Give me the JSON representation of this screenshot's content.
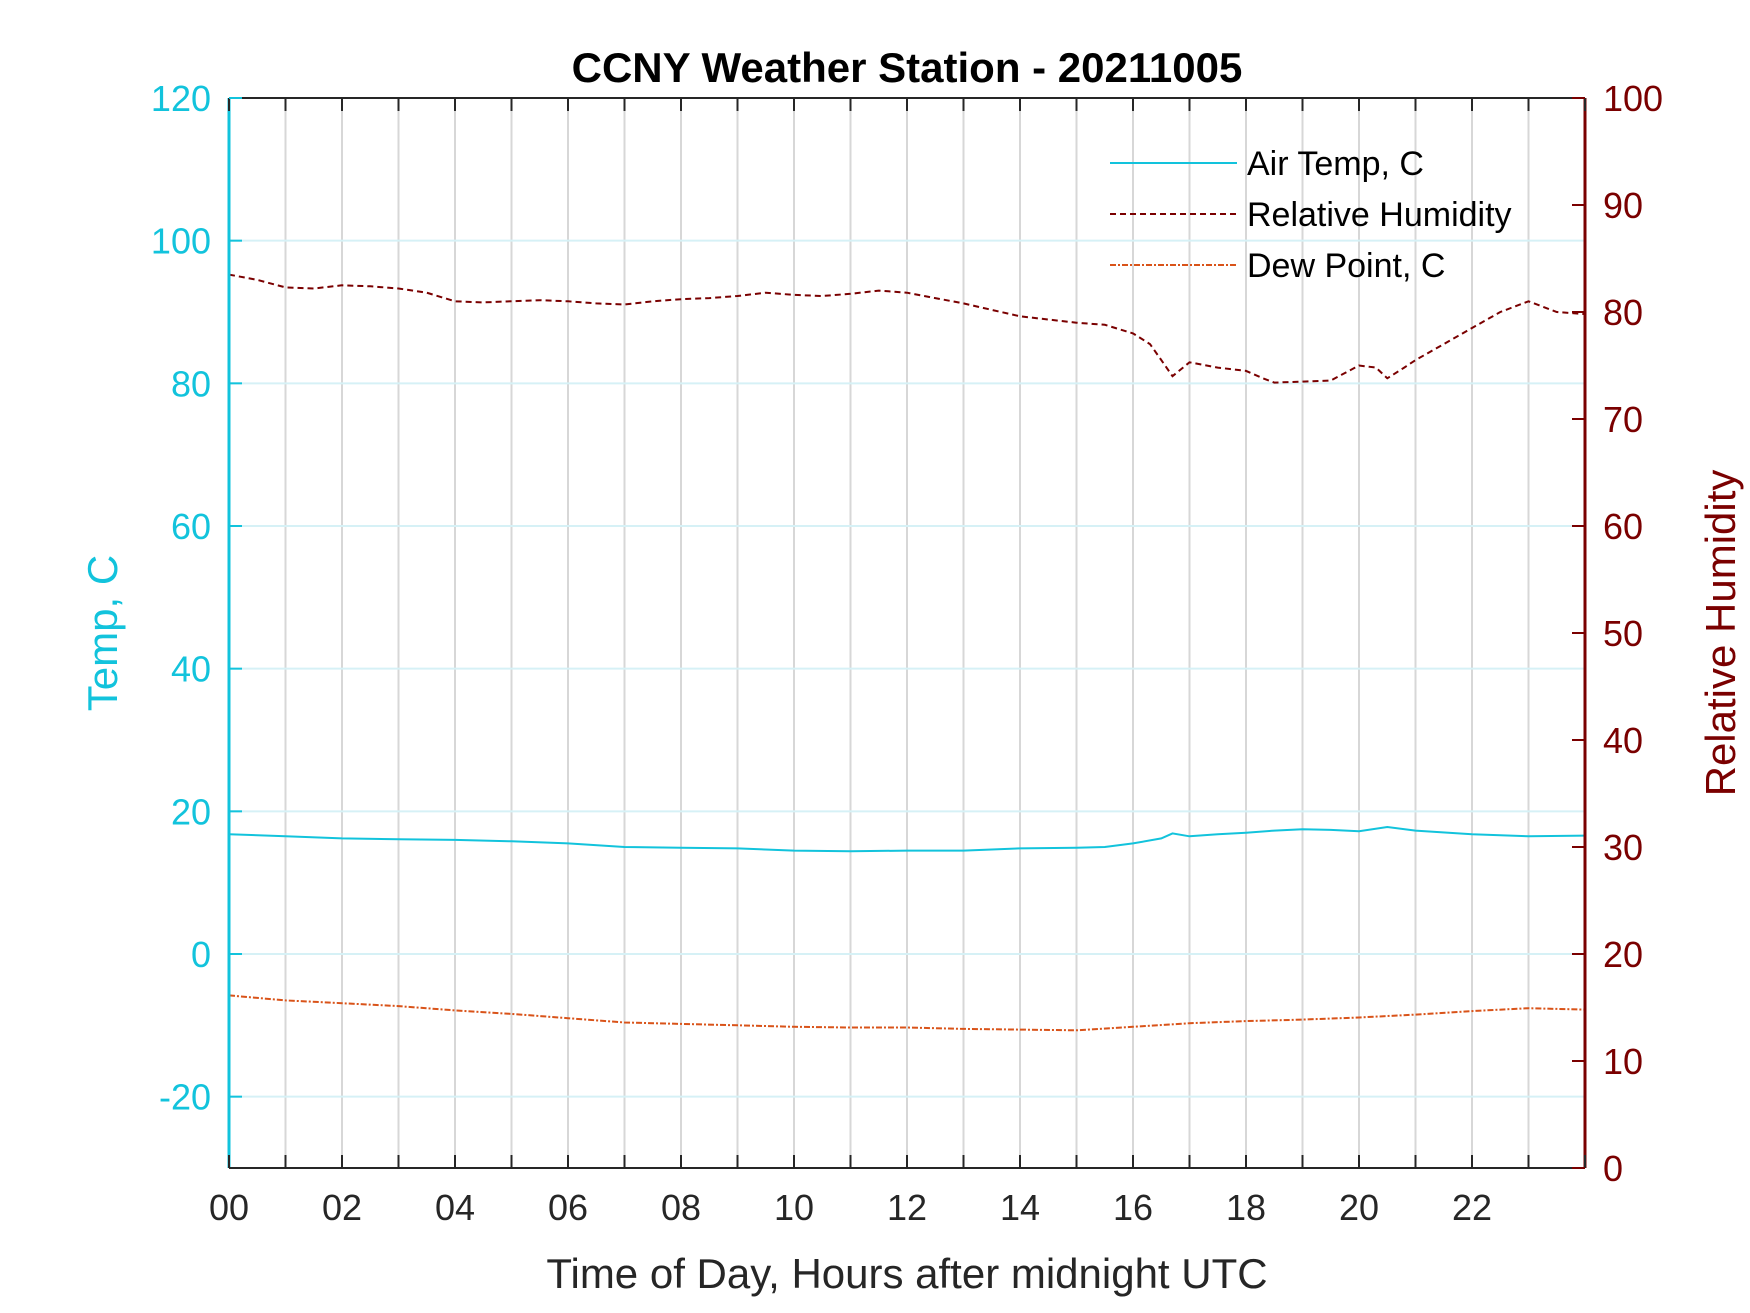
{
  "chart_data": {
    "type": "line",
    "title": "CCNY Weather Station - 20211005",
    "xlabel": "Time of Day, Hours after midnight UTC",
    "ylabel_left": "Temp, C",
    "ylabel_right": "Relative Humidity",
    "xlim": [
      0,
      24
    ],
    "ylim_left": [
      -30,
      120
    ],
    "ylim_right": [
      0,
      100
    ],
    "x_ticks": [
      0,
      2,
      4,
      6,
      8,
      10,
      12,
      14,
      16,
      18,
      20,
      22
    ],
    "x_tick_labels": [
      "00",
      "02",
      "04",
      "06",
      "08",
      "10",
      "12",
      "14",
      "16",
      "18",
      "20",
      "22"
    ],
    "y_left_ticks": [
      -20,
      0,
      20,
      40,
      60,
      80,
      100,
      120
    ],
    "y_left_tick_labels": [
      "-20",
      "0",
      "20",
      "40",
      "60",
      "80",
      "100",
      "120"
    ],
    "y_right_ticks": [
      0,
      10,
      20,
      30,
      40,
      50,
      60,
      70,
      80,
      90,
      100
    ],
    "y_right_tick_labels": [
      "0",
      "10",
      "20",
      "30",
      "40",
      "50",
      "60",
      "70",
      "80",
      "90",
      "100"
    ],
    "grid": true,
    "legend_position": "top-right",
    "colors": {
      "temp_axis": "#12c3dc",
      "humidity_axis": "#7a0000",
      "dew": "#d95319"
    },
    "series": [
      {
        "name": "Air Temp, C",
        "axis": "left",
        "style": "solid",
        "x": [
          0,
          1,
          2,
          3,
          4,
          5,
          6,
          7,
          8,
          9,
          10,
          11,
          12,
          13,
          14,
          15,
          15.5,
          16,
          16.5,
          16.7,
          17,
          17.5,
          18,
          18.5,
          19,
          19.5,
          20,
          20.5,
          21,
          22,
          23,
          24
        ],
        "y": [
          16.8,
          16.5,
          16.2,
          16.1,
          16.0,
          15.8,
          15.5,
          15.0,
          14.9,
          14.8,
          14.5,
          14.4,
          14.5,
          14.5,
          14.8,
          14.9,
          15.0,
          15.5,
          16.2,
          16.9,
          16.5,
          16.8,
          17.0,
          17.3,
          17.5,
          17.4,
          17.2,
          17.8,
          17.3,
          16.8,
          16.5,
          16.6
        ]
      },
      {
        "name": "Relative Humidity",
        "axis": "right",
        "style": "dashed",
        "x": [
          0,
          0.5,
          1,
          1.5,
          2,
          2.5,
          3,
          3.5,
          4,
          4.5,
          5,
          5.5,
          6,
          6.5,
          7,
          7.5,
          8,
          8.5,
          9,
          9.5,
          10,
          10.5,
          11,
          11.5,
          12,
          12.5,
          13,
          13.5,
          14,
          14.5,
          15,
          15.5,
          16,
          16.3,
          16.5,
          16.7,
          17,
          17.5,
          18,
          18.3,
          18.5,
          19,
          19.5,
          20,
          20.3,
          20.5,
          20.8,
          21,
          21.5,
          22,
          22.5,
          23,
          23.5,
          24
        ],
        "y": [
          83.5,
          83.0,
          82.3,
          82.2,
          82.5,
          82.4,
          82.2,
          81.8,
          81.0,
          80.9,
          81.0,
          81.1,
          81.0,
          80.8,
          80.7,
          81.0,
          81.2,
          81.3,
          81.5,
          81.8,
          81.6,
          81.5,
          81.7,
          82.0,
          81.8,
          81.3,
          80.8,
          80.2,
          79.6,
          79.3,
          79.0,
          78.8,
          78.0,
          77.0,
          75.5,
          74.0,
          75.3,
          74.8,
          74.5,
          73.8,
          73.4,
          73.5,
          73.6,
          75.0,
          74.8,
          73.8,
          74.8,
          75.5,
          77.0,
          78.5,
          80.0,
          81.0,
          80.0,
          79.8
        ]
      },
      {
        "name": "Dew Point, C",
        "axis": "left",
        "style": "dashdot",
        "x": [
          0,
          1,
          2,
          3,
          4,
          5,
          6,
          7,
          8,
          9,
          10,
          11,
          12,
          13,
          14,
          15,
          16,
          17,
          18,
          19,
          20,
          21,
          22,
          23,
          24
        ],
        "y": [
          -5.8,
          -6.5,
          -6.9,
          -7.3,
          -7.9,
          -8.4,
          -9.0,
          -9.6,
          -9.8,
          -10.0,
          -10.2,
          -10.3,
          -10.3,
          -10.5,
          -10.6,
          -10.7,
          -10.2,
          -9.7,
          -9.4,
          -9.2,
          -8.9,
          -8.5,
          -8.0,
          -7.6,
          -7.8
        ]
      }
    ]
  }
}
